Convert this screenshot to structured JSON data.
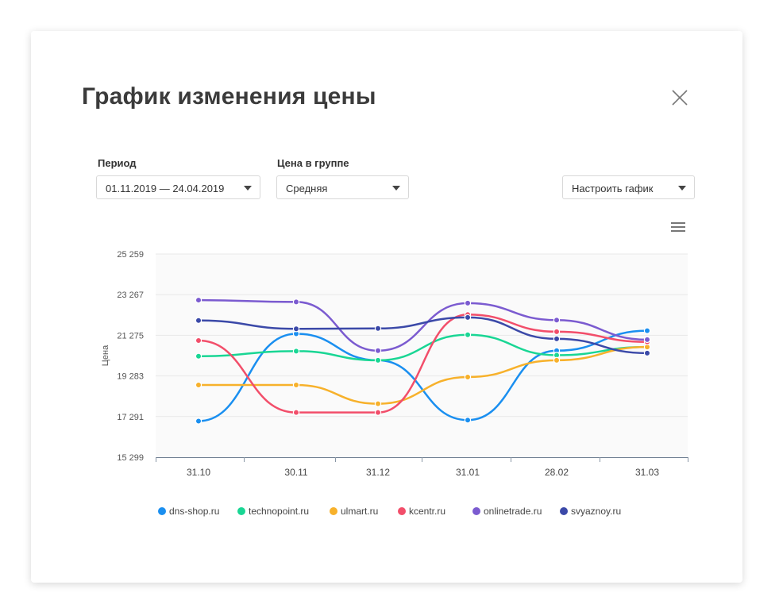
{
  "modal": {
    "title": "График изменения цены"
  },
  "filters": {
    "period": {
      "label": "Период",
      "value": "01.11.2019 — 24.04.2019"
    },
    "group_price": {
      "label": "Цена в группе",
      "value": "Средняя"
    },
    "configure": {
      "value": "Настроить гафик"
    }
  },
  "icons": {
    "close": "close-icon",
    "menu": "hamburger-menu-icon",
    "dropdown": "caret-down-icon"
  },
  "chart_data": {
    "type": "line",
    "title": "",
    "xlabel": "",
    "ylabel": "Цена",
    "categories": [
      "31.10",
      "30.11",
      "31.12",
      "31.01",
      "28.02",
      "31.03"
    ],
    "yticks": [
      "15 299",
      "17 291",
      "19 283",
      "21 275",
      "23 267",
      "25 259"
    ],
    "ylim": [
      15299,
      25259
    ],
    "grid": true,
    "legend_position": "bottom",
    "series": [
      {
        "name": "dns-shop.ru",
        "color": "#1a8ff0",
        "values": [
          17070,
          21350,
          20050,
          17120,
          20520,
          21500
        ]
      },
      {
        "name": "technopoint.ru",
        "color": "#19d694",
        "values": [
          20250,
          20500,
          20050,
          21300,
          20300,
          20700
        ]
      },
      {
        "name": "ulmart.ru",
        "color": "#f7b12b",
        "values": [
          18840,
          18840,
          17920,
          19230,
          20050,
          20700
        ]
      },
      {
        "name": "kcentr.ru",
        "color": "#f24e6a",
        "values": [
          21020,
          17490,
          17490,
          22290,
          21450,
          20950
        ]
      },
      {
        "name": "onlinetrade.ru",
        "color": "#7b5bd0",
        "values": [
          23000,
          22910,
          20520,
          22850,
          22020,
          21060
        ]
      },
      {
        "name": "svyaznoy.ru",
        "color": "#3b49a8",
        "values": [
          22000,
          21590,
          21610,
          22150,
          21100,
          20400
        ]
      }
    ]
  }
}
